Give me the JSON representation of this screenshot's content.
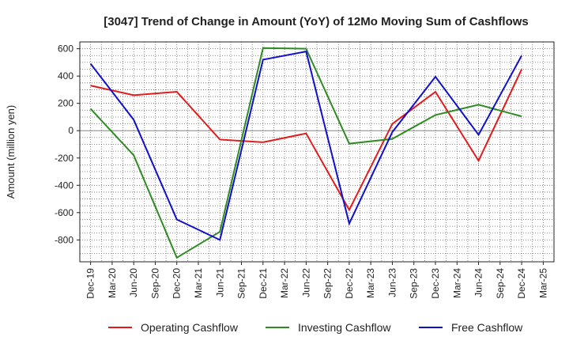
{
  "chart_data": {
    "type": "line",
    "title": "[3047]  Trend of Change in Amount (YoY) of 12Mo Moving Sum of Cashflows",
    "xlabel": "",
    "ylabel": "Amount (million yen)",
    "ylim": [
      -960,
      650
    ],
    "yticks": [
      600,
      400,
      200,
      0,
      -200,
      -400,
      -600,
      -800
    ],
    "grid": true,
    "legend_position": "bottom",
    "categories": [
      "Dec-19",
      "Mar-20",
      "Jun-20",
      "Sep-20",
      "Dec-20",
      "Mar-21",
      "Jun-21",
      "Sep-21",
      "Dec-21",
      "Mar-22",
      "Jun-22",
      "Sep-22",
      "Dec-22",
      "Mar-23",
      "Jun-23",
      "Sep-23",
      "Dec-23",
      "Mar-24",
      "Jun-24",
      "Sep-24",
      "Dec-24",
      "Mar-25"
    ],
    "series": [
      {
        "name": "Operating Cashflow",
        "color": "#e31a1c",
        "values": [
          330,
          null,
          260,
          null,
          285,
          null,
          -65,
          null,
          -85,
          null,
          -20,
          null,
          -580,
          null,
          50,
          null,
          285,
          null,
          -220,
          null,
          450,
          null
        ]
      },
      {
        "name": "Investing Cashflow",
        "color": "#2e8b22",
        "values": [
          160,
          null,
          -180,
          null,
          -930,
          null,
          -740,
          null,
          605,
          null,
          600,
          null,
          -95,
          null,
          -60,
          null,
          115,
          null,
          190,
          null,
          105,
          null
        ]
      },
      {
        "name": "Free Cashflow",
        "color": "#1010cc",
        "values": [
          490,
          null,
          80,
          null,
          -650,
          null,
          -800,
          null,
          520,
          null,
          580,
          null,
          -680,
          null,
          -10,
          null,
          395,
          null,
          -30,
          null,
          550,
          null
        ]
      }
    ]
  }
}
